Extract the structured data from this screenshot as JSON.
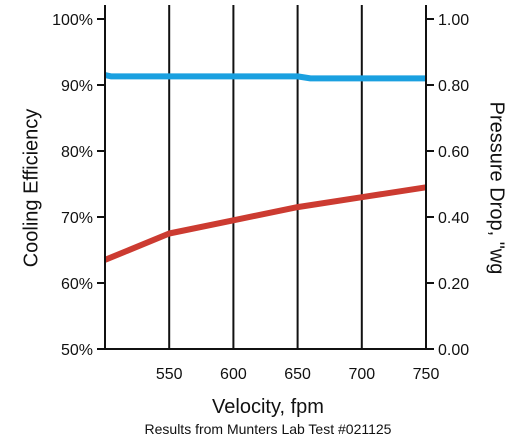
{
  "chart_data": {
    "type": "line",
    "xlabel": "Velocity, fpm",
    "ylabel_left": "Cooling Efficiency",
    "ylabel_right": "Pressure Drop, \"wg",
    "footnote": "Results from Munters Lab Test #021125",
    "x_range": [
      500,
      750
    ],
    "x_ticks": [
      "550",
      "600",
      "650",
      "700",
      "750"
    ],
    "x_tick_values": [
      550,
      600,
      650,
      700,
      750
    ],
    "left_range": [
      50,
      100
    ],
    "left_ticks": [
      "50%",
      "60%",
      "70%",
      "80%",
      "90%",
      "100%"
    ],
    "left_tick_values": [
      50,
      60,
      70,
      80,
      90,
      100
    ],
    "right_range": [
      0,
      1
    ],
    "right_ticks": [
      "0.00",
      "0.20",
      "0.40",
      "0.60",
      "0.80",
      "1.00"
    ],
    "right_tick_values": [
      0,
      0.2,
      0.4,
      0.6,
      0.8,
      1.0
    ],
    "grid": "vertical",
    "series": [
      {
        "axis": "left",
        "color": "#1aa0e0",
        "x": [
          500,
          505,
          550,
          600,
          650,
          660,
          700,
          750
        ],
        "y": [
          91.5,
          91.3,
          91.3,
          91.3,
          91.3,
          91.0,
          91.0,
          91.0
        ]
      },
      {
        "axis": "right",
        "color": "#cc3b31",
        "x": [
          500,
          550,
          600,
          650,
          700,
          750
        ],
        "y": [
          0.27,
          0.35,
          0.39,
          0.43,
          0.46,
          0.49
        ]
      }
    ]
  }
}
